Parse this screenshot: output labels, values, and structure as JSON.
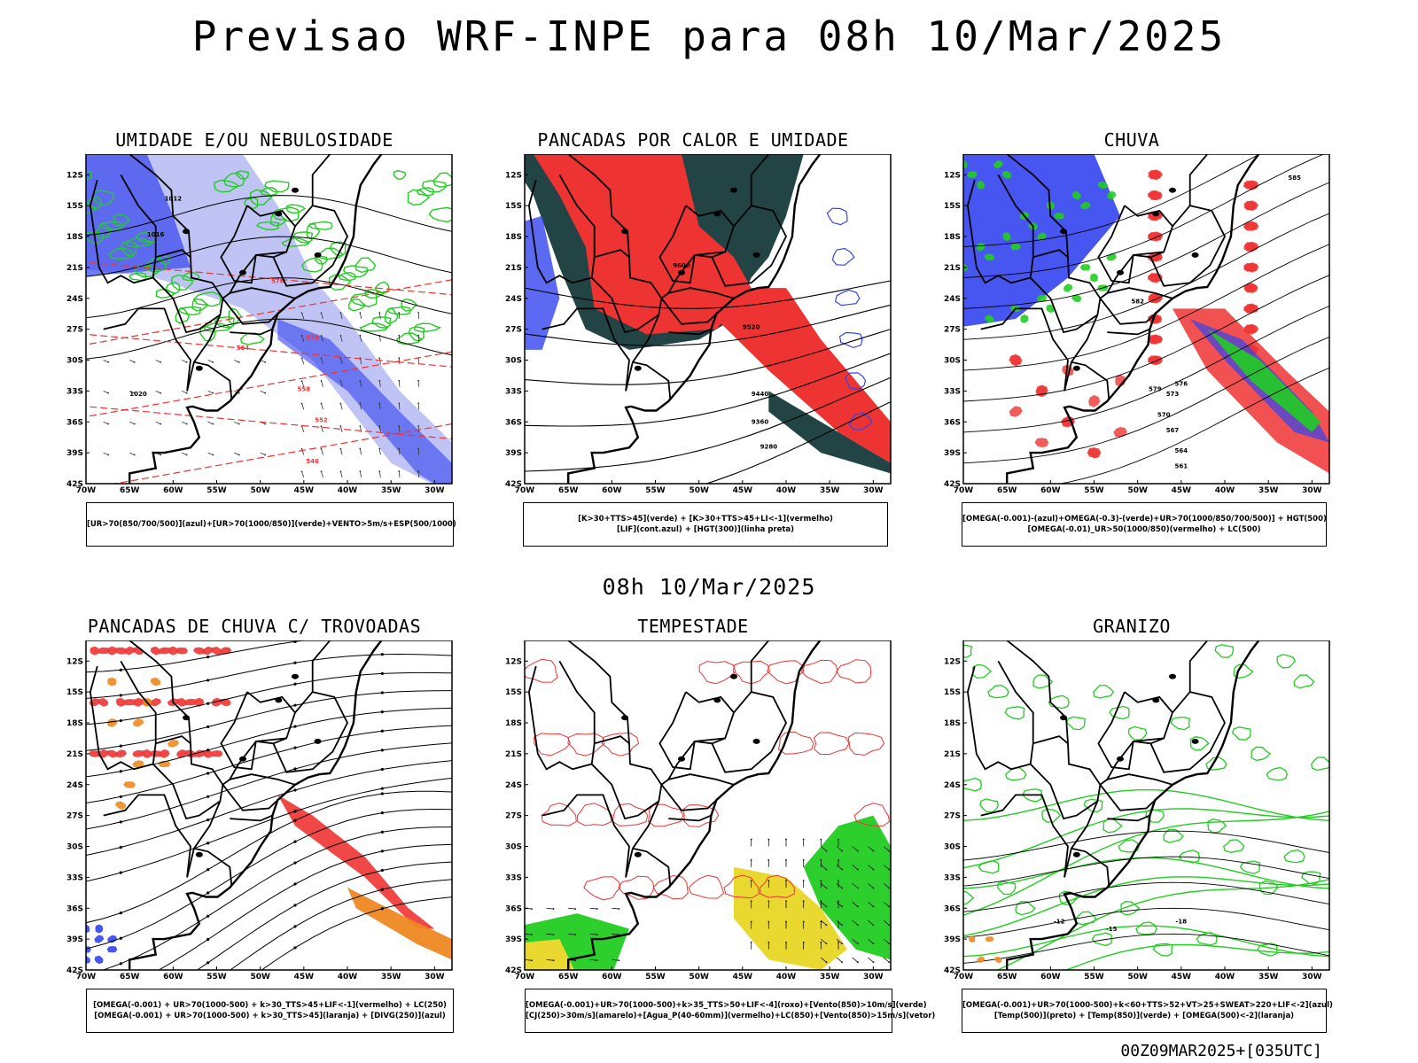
{
  "header": {
    "title": "Previsao WRF-INPE  para 08h 10/Mar/2025",
    "mid_title": "08h 10/Mar/2025",
    "footer": "00Z09MAR2025+[035UTC]"
  },
  "axes": {
    "lat_labels": [
      "12S",
      "15S",
      "18S",
      "21S",
      "24S",
      "27S",
      "30S",
      "33S",
      "36S",
      "39S",
      "42S"
    ],
    "lon_labels": [
      "70W",
      "65W",
      "60W",
      "55W",
      "50W",
      "45W",
      "40W",
      "35W",
      "30W"
    ]
  },
  "panels": [
    {
      "title": "UMIDADE E/OU NEBULOSIDADE",
      "legend": [
        "[UR>70(850/700/500)](azul)+[UR>70(1000/850)](verde)+VENTO>5m/s+ESP(500/1000)"
      ],
      "contour_labels": [
        "1012",
        "1016",
        "1020",
        "576",
        "570",
        "564",
        "558",
        "552",
        "546"
      ]
    },
    {
      "title": "PANCADAS POR CALOR E UMIDADE",
      "legend": [
        "[K>30+TTS>45](verde) + [K>30+TTS>45+LI<-1](vermelho)",
        "[LIF](cont.azul) + [HGT(300)](linha preta)"
      ],
      "contour_labels": [
        "9600",
        "9520",
        "9440",
        "9360",
        "9280"
      ]
    },
    {
      "title": "CHUVA",
      "legend": [
        "[OMEGA(-0.001)-(azul)+OMEGA(-0.3)-(verde)+UR>70(1000/850/700/500)] + HGT(500)",
        "[OMEGA(-0.01)_UR>50(1000/850)(vermelho) + LC(500)"
      ],
      "contour_labels": [
        "585",
        "582",
        "579",
        "576",
        "573",
        "570",
        "567",
        "564",
        "561"
      ]
    },
    {
      "title": "PANCADAS DE CHUVA C/ TROVOADAS",
      "legend": [
        "[OMEGA(-0.001) + UR>70(1000-500) + k>30_TTS>45+LIF<-1](vermelho) + LC(250)",
        "[OMEGA(-0.001) + UR>70(1000-500) + k>30_TTS>45](laranja) + [DIVG(250)](azul)"
      ],
      "contour_labels": []
    },
    {
      "title": "TEMPESTADE",
      "legend": [
        "[OMEGA(-0.001)+UR>70(1000-500)+k>35_TTS>50+LIF<-4](roxo)+[Vento(850)>10m/s](verde)",
        "[CJ(250)>30m/s](amarelo)+[Agua_P(40-60mm)](vermelho)+LC(850)+[Vento(850)>15m/s](vetor)"
      ],
      "contour_labels": []
    },
    {
      "title": "GRANIZO",
      "legend": [
        "[OMEGA(-0.001)+UR>70(1000-500)+k<60+TTS>52+VT>25+SWEAT>220+LIF<-2](azul)",
        "[Temp(500)](preto) + [Temp(850)](verde) + [OMEGA(500)<-2](laranja)"
      ],
      "contour_labels": [
        "-12",
        "-15",
        "-18"
      ]
    }
  ],
  "colors": {
    "blue": "#3344ee",
    "lightblue": "#aab0f0",
    "green": "#22cc22",
    "red": "#ee3333",
    "darkteal": "#224444",
    "orange": "#ee8822",
    "yellow": "#e8d830"
  }
}
